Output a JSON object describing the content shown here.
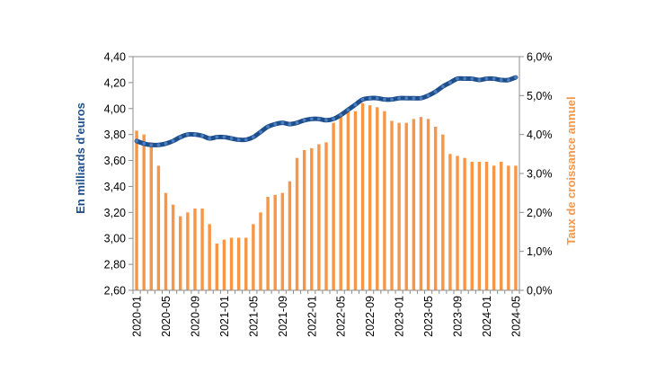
{
  "chart_data": {
    "type": "bar+line",
    "title": "",
    "categories": [
      "2020-01",
      "2020-02",
      "2020-03",
      "2020-04",
      "2020-05",
      "2020-06",
      "2020-07",
      "2020-08",
      "2020-09",
      "2020-10",
      "2020-11",
      "2020-12",
      "2021-01",
      "2021-02",
      "2021-03",
      "2021-04",
      "2021-05",
      "2021-06",
      "2021-07",
      "2021-08",
      "2021-09",
      "2021-10",
      "2021-11",
      "2021-12",
      "2022-01",
      "2022-02",
      "2022-03",
      "2022-04",
      "2022-05",
      "2022-06",
      "2022-07",
      "2022-08",
      "2022-09",
      "2022-10",
      "2022-11",
      "2022-12",
      "2023-01",
      "2023-02",
      "2023-03",
      "2023-04",
      "2023-05",
      "2023-06",
      "2023-07",
      "2023-08",
      "2023-09",
      "2023-10",
      "2023-11",
      "2023-12",
      "2024-01",
      "2024-02",
      "2024-03",
      "2024-04",
      "2024-05"
    ],
    "x_tick_labels": [
      "2020-01",
      "2020-05",
      "2020-09",
      "2021-01",
      "2021-05",
      "2021-09",
      "2022-01",
      "2022-05",
      "2022-09",
      "2023-01",
      "2023-05",
      "2023-09",
      "2024-01",
      "2024-05"
    ],
    "left_axis": {
      "label": "En milliards d'euros",
      "ylim": [
        2.6,
        4.4
      ],
      "ticks": [
        "2,60",
        "2,80",
        "3,00",
        "3,20",
        "3,40",
        "3,60",
        "3,80",
        "4,00",
        "4,20",
        "4,40"
      ],
      "color": "#1f4e8c"
    },
    "right_axis": {
      "label": "Taux de croissance annuel",
      "ylim": [
        0,
        6
      ],
      "ticks": [
        "0,0%",
        "1,0%",
        "2,0%",
        "3,0%",
        "4,0%",
        "5,0%",
        "6,0%"
      ],
      "color": "#f79646"
    },
    "series": [
      {
        "type": "bar",
        "axis": "right",
        "color": "#f79646",
        "values": [
          4.1,
          4.0,
          3.8,
          3.2,
          2.5,
          2.2,
          1.9,
          2.0,
          2.1,
          2.1,
          1.7,
          1.2,
          1.3,
          1.35,
          1.35,
          1.35,
          1.7,
          2.0,
          2.4,
          2.45,
          2.5,
          2.8,
          3.4,
          3.6,
          3.65,
          3.75,
          3.8,
          4.3,
          4.5,
          4.6,
          4.6,
          4.8,
          4.75,
          4.7,
          4.6,
          4.35,
          4.3,
          4.3,
          4.4,
          4.45,
          4.4,
          4.2,
          4.0,
          3.5,
          3.45,
          3.4,
          3.3,
          3.3,
          3.3,
          3.2,
          3.3,
          3.2,
          3.2
        ]
      },
      {
        "type": "line",
        "axis": "left",
        "color": "#1f4e8c",
        "marker_color": "#4a7fc0",
        "values": [
          3.75,
          3.73,
          3.72,
          3.72,
          3.73,
          3.75,
          3.78,
          3.8,
          3.8,
          3.79,
          3.77,
          3.78,
          3.78,
          3.77,
          3.76,
          3.76,
          3.78,
          3.82,
          3.86,
          3.88,
          3.89,
          3.88,
          3.89,
          3.91,
          3.92,
          3.92,
          3.91,
          3.92,
          3.95,
          3.99,
          4.03,
          4.07,
          4.08,
          4.08,
          4.07,
          4.07,
          4.08,
          4.08,
          4.08,
          4.08,
          4.1,
          4.13,
          4.17,
          4.2,
          4.23,
          4.23,
          4.23,
          4.22,
          4.23,
          4.23,
          4.22,
          4.22,
          4.24
        ]
      }
    ],
    "grid": false,
    "legend": "none"
  }
}
